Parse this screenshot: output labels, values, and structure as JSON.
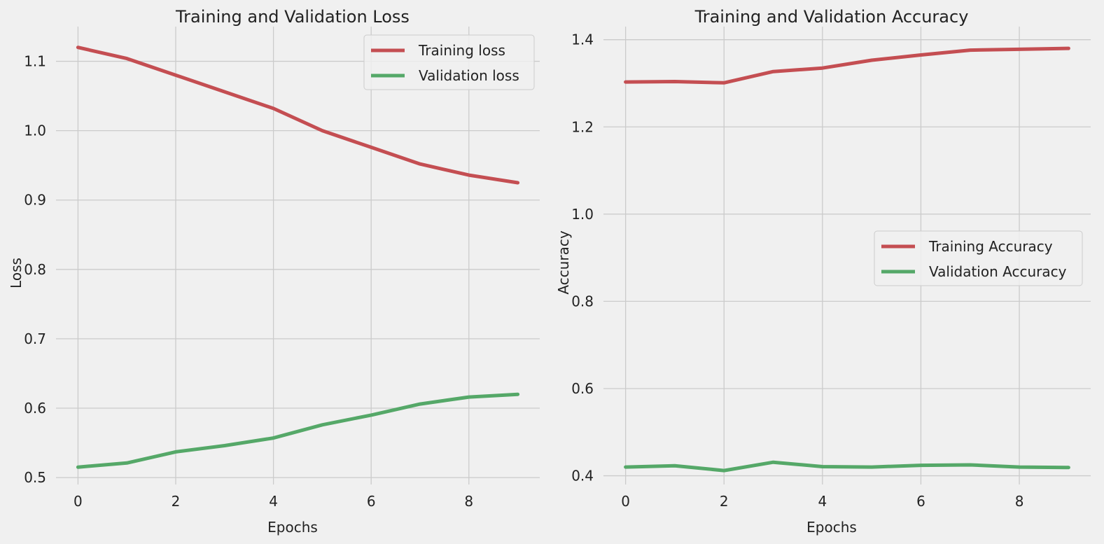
{
  "chart_data": [
    {
      "type": "line",
      "title": "Training and Validation Loss",
      "xlabel": "Epochs",
      "ylabel": "Loss",
      "x": [
        0,
        1,
        2,
        3,
        4,
        5,
        6,
        7,
        8,
        9
      ],
      "xlim": [
        -0.45,
        9.45
      ],
      "ylim": [
        0.49,
        1.15
      ],
      "xticks": [
        0,
        2,
        4,
        6,
        8
      ],
      "xtick_labels": [
        "0",
        "2",
        "4",
        "6",
        "8"
      ],
      "yticks": [
        0.5,
        0.6,
        0.7,
        0.8,
        0.9,
        1.0,
        1.1
      ],
      "ytick_labels": [
        "0.5",
        "0.6",
        "0.7",
        "0.8",
        "0.9",
        "1.0",
        "1.1"
      ],
      "grid": true,
      "legend_position": "top-right",
      "series": [
        {
          "name": "Training loss",
          "color": "#c44e52",
          "values": [
            1.12,
            1.104,
            1.08,
            1.056,
            1.032,
            1.0,
            0.976,
            0.952,
            0.936,
            0.925
          ]
        },
        {
          "name": "Validation loss",
          "color": "#55a868",
          "values": [
            0.515,
            0.521,
            0.537,
            0.546,
            0.557,
            0.576,
            0.59,
            0.606,
            0.616,
            0.62
          ]
        }
      ]
    },
    {
      "type": "line",
      "title": "Training and Validation Accuracy",
      "xlabel": "Epochs",
      "ylabel": "Accuracy",
      "x": [
        0,
        1,
        2,
        3,
        4,
        5,
        6,
        7,
        8,
        9
      ],
      "xlim": [
        -0.45,
        9.45
      ],
      "ylim": [
        0.38,
        1.43
      ],
      "xticks": [
        0,
        2,
        4,
        6,
        8
      ],
      "xtick_labels": [
        "0",
        "2",
        "4",
        "6",
        "8"
      ],
      "yticks": [
        0.4,
        0.6,
        0.8,
        1.0,
        1.2,
        1.4
      ],
      "ytick_labels": [
        "0.4",
        "0.6",
        "0.8",
        "1.0",
        "1.2",
        "1.4"
      ],
      "grid": true,
      "legend_position": "center-right",
      "series": [
        {
          "name": "Training Accuracy",
          "color": "#c44e52",
          "values": [
            1.303,
            1.304,
            1.301,
            1.327,
            1.335,
            1.353,
            1.365,
            1.376,
            1.378,
            1.38
          ]
        },
        {
          "name": "Validation Accuracy",
          "color": "#55a868",
          "values": [
            0.42,
            0.423,
            0.412,
            0.431,
            0.421,
            0.42,
            0.424,
            0.425,
            0.42,
            0.419
          ]
        }
      ]
    }
  ]
}
